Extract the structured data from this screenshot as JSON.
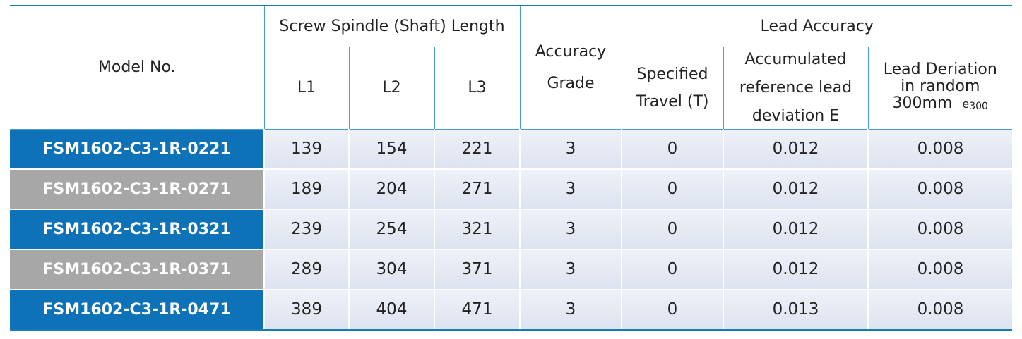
{
  "table": {
    "header": {
      "model": "Model No.",
      "spindle": "Screw Spindle (Shaft) Length",
      "l1": "L1",
      "l2": "L2",
      "l3": "L3",
      "grade": [
        "Accuracy",
        "Grade"
      ],
      "lead": "Lead Accuracy",
      "travel": [
        "Specified",
        "Travel (T)"
      ],
      "accumulated": [
        "Accumulated",
        "reference lead",
        "deviation E"
      ],
      "deviation": [
        "Lead Deriation",
        "in random",
        "300mm"
      ],
      "deviation_symbol": "e",
      "deviation_sub": "300"
    },
    "rows": [
      [
        "FSM1602-C3-1R-0221",
        "139",
        "154",
        "221",
        "3",
        "0",
        "0.012",
        "0.008"
      ],
      [
        "FSM1602-C3-1R-0271",
        "189",
        "204",
        "271",
        "3",
        "0",
        "0.012",
        "0.008"
      ],
      [
        "FSM1602-C3-1R-0321",
        "239",
        "254",
        "321",
        "3",
        "0",
        "0.012",
        "0.008"
      ],
      [
        "FSM1602-C3-1R-0371",
        "289",
        "304",
        "371",
        "3",
        "0",
        "0.012",
        "0.008"
      ],
      [
        "FSM1602-C3-1R-0471",
        "389",
        "404",
        "471",
        "3",
        "0",
        "0.013",
        "0.008"
      ]
    ]
  }
}
